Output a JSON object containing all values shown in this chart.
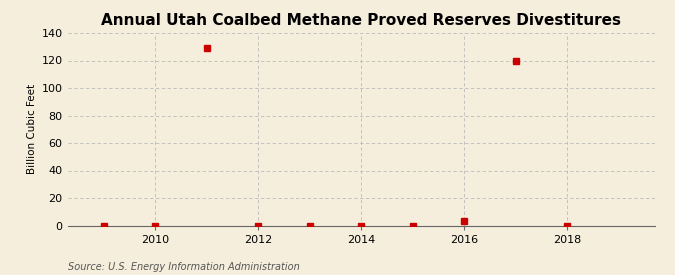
{
  "title": "Annual Utah Coalbed Methane Proved Reserves Divestitures",
  "ylabel": "Billion Cubic Feet",
  "source": "Source: U.S. Energy Information Administration",
  "years": [
    2009,
    2010,
    2011,
    2012,
    2013,
    2014,
    2015,
    2016,
    2017,
    2018
  ],
  "values": [
    0,
    0,
    129,
    0,
    0,
    0,
    0,
    3,
    120,
    0
  ],
  "xlim": [
    2008.3,
    2019.7
  ],
  "ylim": [
    0,
    140
  ],
  "yticks": [
    0,
    20,
    40,
    60,
    80,
    100,
    120,
    140
  ],
  "xticks": [
    2010,
    2012,
    2014,
    2016,
    2018
  ],
  "marker_color": "#cc0000",
  "marker_size": 4,
  "grid_color": "#bbbbbb",
  "background_color": "#f5eedc",
  "title_fontsize": 11,
  "label_fontsize": 7.5,
  "tick_fontsize": 8,
  "source_fontsize": 7
}
